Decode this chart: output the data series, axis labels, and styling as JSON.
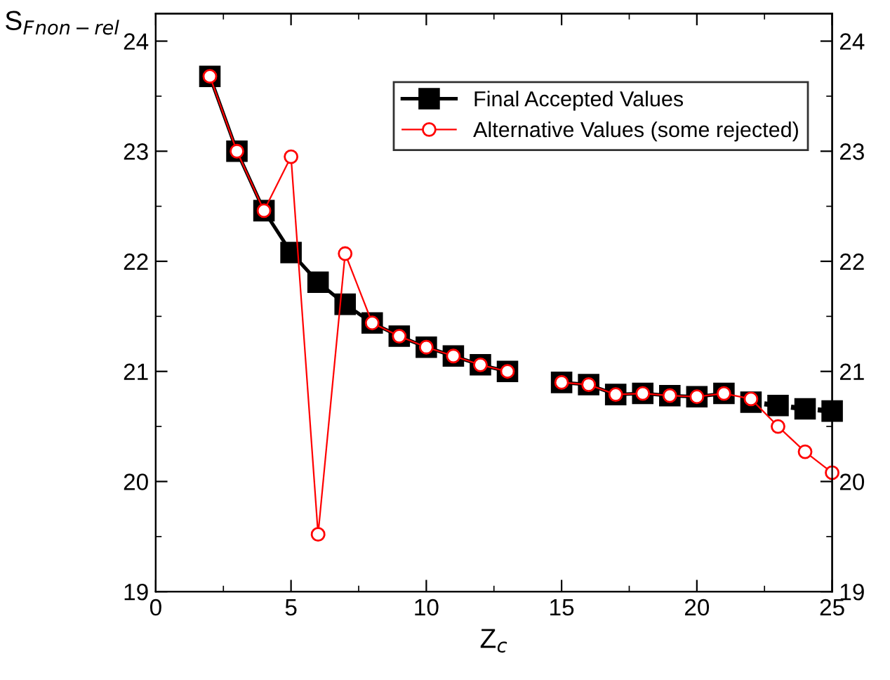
{
  "chart_data": {
    "type": "line",
    "x": [
      2,
      3,
      4,
      5,
      6,
      7,
      8,
      9,
      10,
      11,
      12,
      13,
      14,
      15,
      16,
      17,
      18,
      19,
      20,
      21,
      22,
      23,
      24,
      25
    ],
    "xlabel": "Z$_{c}$",
    "ylabel": "S$_{F}$$_{non−rel}$",
    "series": [
      {
        "name": "Final Accepted Values",
        "color": "#000000",
        "marker": "square",
        "line_style": "solid",
        "values": [
          23.68,
          23.0,
          22.46,
          22.08,
          21.81,
          21.61,
          21.44,
          21.32,
          21.22,
          21.14,
          21.06,
          21.0,
          null,
          20.9,
          20.88,
          20.79,
          20.8,
          20.78,
          20.77,
          20.8,
          null,
          null,
          null,
          null
        ]
      },
      {
        "color": "#000000",
        "marker": "square",
        "line_style": "dotted",
        "values": [
          null,
          null,
          null,
          null,
          null,
          null,
          null,
          null,
          null,
          null,
          null,
          null,
          null,
          null,
          null,
          null,
          null,
          null,
          null,
          null,
          20.72,
          20.69,
          20.66,
          20.64
        ]
      },
      {
        "name": "Alternative Values (some rejected)",
        "color": "#ff0000",
        "marker": "circle",
        "line_style": "solid",
        "values": [
          23.68,
          23.0,
          22.46,
          22.95,
          19.52,
          22.07,
          21.44,
          21.32,
          21.22,
          21.14,
          21.06,
          21.0,
          null,
          20.9,
          20.88,
          20.79,
          20.8,
          20.78,
          20.77,
          20.8,
          20.75,
          20.5,
          20.27,
          20.08
        ]
      }
    ],
    "xlim": [
      0,
      25
    ],
    "xticks": [
      0,
      5,
      10,
      15,
      20,
      25
    ],
    "ylim": [
      19,
      24.25
    ],
    "yticks": [
      19,
      20,
      21,
      22,
      23,
      24
    ],
    "y2lim": [
      19,
      24.25
    ],
    "y2ticks": [
      19,
      20,
      21,
      22,
      23,
      24
    ],
    "grid": false,
    "legend": "top right"
  }
}
